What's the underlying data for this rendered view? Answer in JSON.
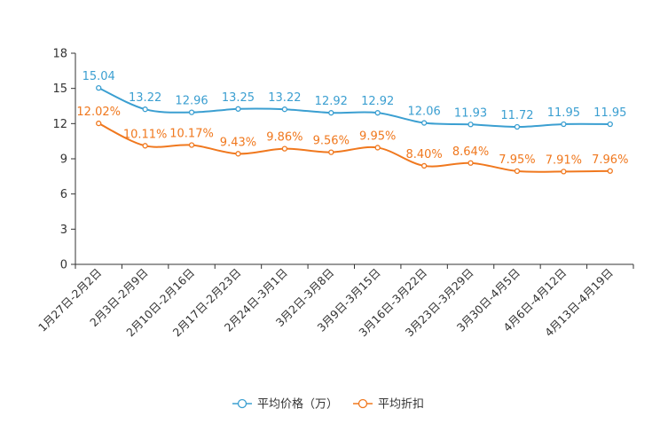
{
  "chart_data": {
    "type": "line",
    "title": "",
    "xlabel": "",
    "ylabel": "",
    "ylim": [
      0,
      18
    ],
    "y_ticks": [
      0,
      3,
      6,
      9,
      12,
      15,
      18
    ],
    "grid": false,
    "legend_position": "bottom-center",
    "categories": [
      "1月27日-2月2日",
      "2月3日-2月9日",
      "2月10日-2月16日",
      "2月17日-2月23日",
      "2月24日-3月1日",
      "3月2日-3月8日",
      "3月9日-3月15日",
      "3月16日-3月22日",
      "3月23日-3月29日",
      "3月30日-4月5日",
      "4月6日-4月12日",
      "4月13日-4月19日"
    ],
    "series": [
      {
        "name": "平均价格（万）",
        "color": "#3b9fd1",
        "values": [
          15.04,
          13.22,
          12.96,
          13.25,
          13.22,
          12.92,
          12.92,
          12.06,
          11.93,
          11.72,
          11.95,
          11.95
        ],
        "labels": [
          "15.04",
          "13.22",
          "12.96",
          "13.25",
          "13.22",
          "12.92",
          "12.92",
          "12.06",
          "11.93",
          "11.72",
          "11.95",
          "11.95"
        ]
      },
      {
        "name": "平均折扣",
        "color": "#f0781e",
        "values": [
          12.02,
          10.11,
          10.17,
          9.43,
          9.86,
          9.56,
          9.95,
          8.4,
          8.64,
          7.95,
          7.91,
          7.96
        ],
        "labels": [
          "12.02%",
          "10.11%",
          "10.17%",
          "9.43%",
          "9.86%",
          "9.56%",
          "9.95%",
          "8.40%",
          "8.64%",
          "7.95%",
          "7.91%",
          "7.96%"
        ]
      }
    ]
  }
}
